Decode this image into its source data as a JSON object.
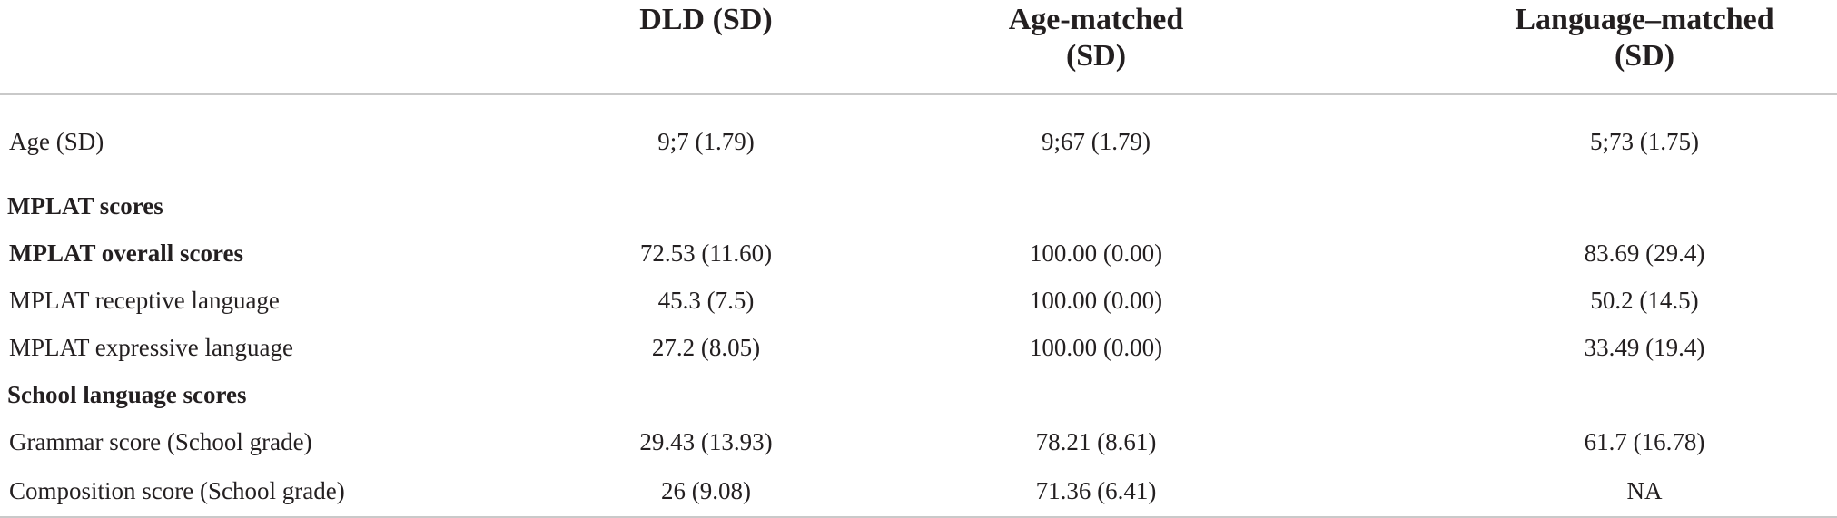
{
  "table": {
    "headers": [
      "",
      "DLD (SD)",
      "Age-matched (SD)",
      "Language–matched (SD)"
    ],
    "header_lines": {
      "dld": [
        "DLD (SD)"
      ],
      "age": [
        "Age-matched",
        "(SD)"
      ],
      "lang": [
        "Language–matched",
        "(SD)"
      ]
    },
    "rows": [
      {
        "label": "Age (SD)",
        "dld": "9;7 (1.79)",
        "age": "9;67 (1.79)",
        "lang": "5;73 (1.75)"
      },
      {
        "label": "MPLAT scores",
        "dld": "",
        "age": "",
        "lang": ""
      },
      {
        "label": "MPLAT overall scores",
        "dld": "72.53 (11.60)",
        "age": "100.00 (0.00)",
        "lang": "83.69 (29.4)"
      },
      {
        "label": "MPLAT receptive language",
        "dld": "45.3 (7.5)",
        "age": "100.00 (0.00)",
        "lang": "50.2 (14.5)"
      },
      {
        "label": "MPLAT expressive language",
        "dld": "27.2 (8.05)",
        "age": "100.00 (0.00)",
        "lang": "33.49 (19.4)"
      },
      {
        "label": "School language scores",
        "dld": "",
        "age": "",
        "lang": ""
      },
      {
        "label": "Grammar score (School grade)",
        "dld": "29.43 (13.93)",
        "age": "78.21 (8.61)",
        "lang": "61.7 (16.78)"
      },
      {
        "label": "Composition score (School grade)",
        "dld": "26 (9.08)",
        "age": "71.36 (6.41)",
        "lang": "NA"
      }
    ]
  },
  "colors": {
    "text": "#231f20",
    "rule": "#c9c9c9",
    "background": "#ffffff"
  }
}
